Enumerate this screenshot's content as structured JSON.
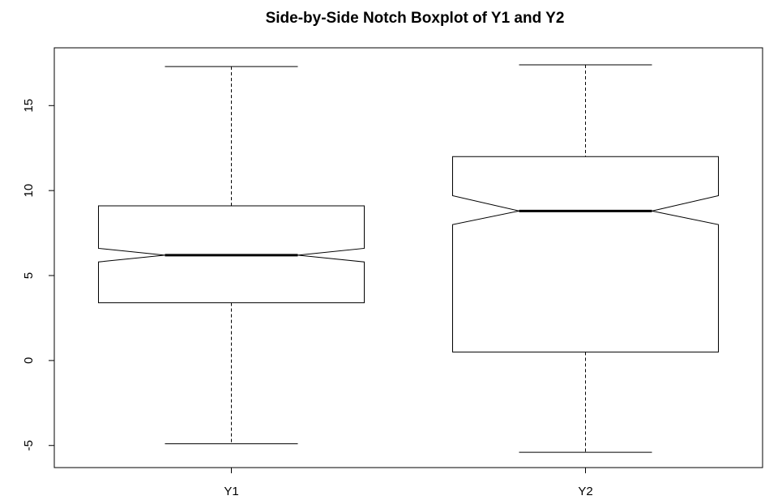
{
  "chart_data": {
    "type": "boxplot",
    "title": "Side-by-Side Notch Boxplot of Y1 and Y2",
    "xlabel": "",
    "ylabel": "",
    "notch": true,
    "ylim": [
      -6.3,
      18.4
    ],
    "yticks": [
      -5,
      0,
      5,
      10,
      15
    ],
    "ytick_labels": [
      "-5",
      "0",
      "5",
      "10",
      "15"
    ],
    "grid": false,
    "categories": [
      "Y1",
      "Y2"
    ],
    "boxes": [
      {
        "category": "Y1",
        "whisker_low": -4.9,
        "q1": 3.4,
        "median": 6.2,
        "notch_low": 5.8,
        "notch_high": 6.6,
        "q3": 9.1,
        "whisker_high": 17.3
      },
      {
        "category": "Y2",
        "whisker_low": -5.4,
        "q1": 0.5,
        "median": 8.8,
        "notch_low": 8.0,
        "notch_high": 9.7,
        "q3": 12.0,
        "whisker_high": 17.4
      }
    ],
    "colors": {
      "stroke": "#000000",
      "fill": "#ffffff"
    }
  }
}
